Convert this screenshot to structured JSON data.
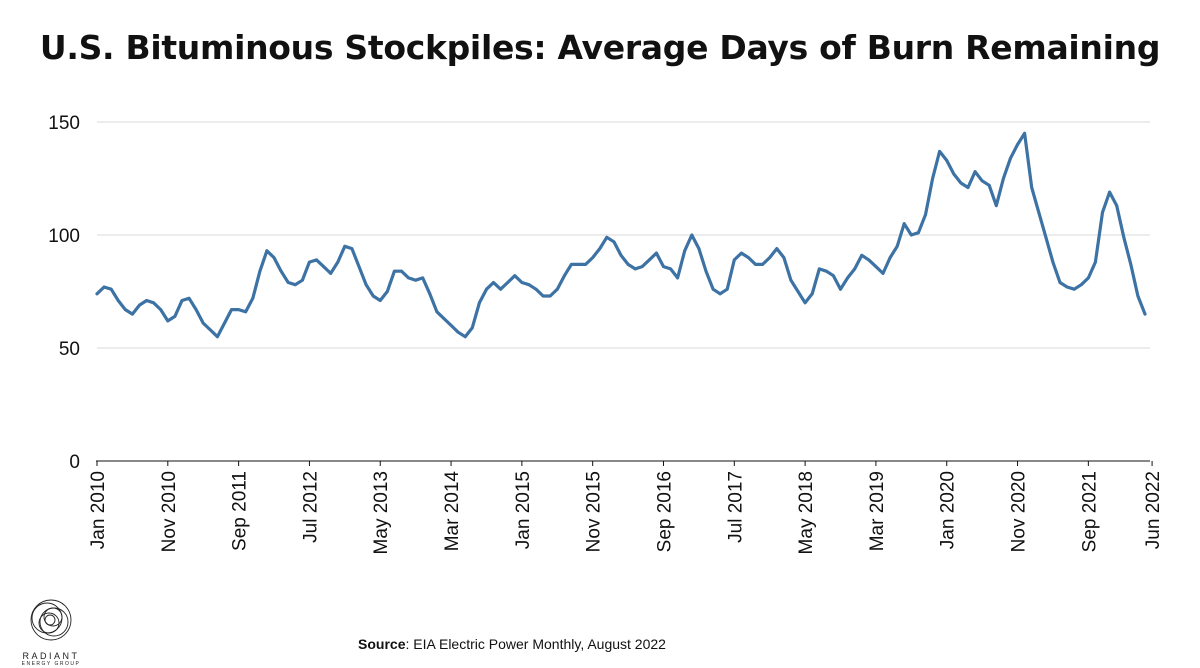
{
  "title": "U.S. Bituminous Stockpiles: Average Days of Burn Remaining",
  "source": {
    "label": "Source",
    "text": ": EIA Electric Power Monthly, August 2022"
  },
  "logo": {
    "name": "RADIANT",
    "subtitle": "ENERGY GROUP"
  },
  "colors": {
    "line": "#3d72a4",
    "grid": "#d9d9d9",
    "axis": "#111111"
  },
  "chart_data": {
    "type": "line",
    "title": "U.S. Bituminous Stockpiles: Average Days of Burn Remaining",
    "xlabel": "",
    "ylabel": "",
    "ylim": [
      0,
      150
    ],
    "yticks": [
      0,
      50,
      100,
      150
    ],
    "grid": true,
    "x_start": "Jan 2010",
    "x_end": "Jun 2022",
    "x_ticks": [
      "Jan 2010",
      "Nov 2010",
      "Sep 2011",
      "Jul 2012",
      "May 2013",
      "Mar 2014",
      "Jan 2015",
      "Nov 2015",
      "Sep 2016",
      "Jul 2017",
      "May 2018",
      "Mar 2019",
      "Jan 2020",
      "Nov 2020",
      "Sep 2021",
      "Jun 2022"
    ],
    "series": [
      {
        "values": [
          74,
          77,
          76,
          71,
          67,
          65,
          69,
          71,
          70,
          67,
          62,
          64,
          71,
          72,
          67,
          61,
          58,
          55,
          61,
          67,
          67,
          66,
          72,
          84,
          93,
          90,
          84,
          79,
          78,
          80,
          88,
          89,
          86,
          83,
          88,
          95,
          94,
          86,
          78,
          73,
          71,
          75,
          84,
          84,
          81,
          80,
          81,
          74,
          66,
          63,
          60,
          57,
          55,
          59,
          70,
          76,
          79,
          76,
          79,
          82,
          79,
          78,
          76,
          73,
          73,
          76,
          82,
          87,
          87,
          87,
          90,
          94,
          99,
          97,
          91,
          87,
          85,
          86,
          89,
          92,
          86,
          85,
          81,
          93,
          100,
          94,
          84,
          76,
          74,
          76,
          89,
          92,
          90,
          87,
          87,
          90,
          94,
          90,
          80,
          75,
          70,
          74,
          85,
          84,
          82,
          76,
          81,
          85,
          91,
          89,
          86,
          83,
          90,
          95,
          105,
          100,
          101,
          109,
          125,
          137,
          133,
          127,
          123,
          121,
          128,
          124,
          122,
          113,
          125,
          134,
          140,
          145,
          121,
          110,
          99,
          88,
          79,
          77,
          76,
          78,
          81,
          88,
          110,
          119,
          113,
          99,
          87,
          73,
          65
        ]
      }
    ]
  }
}
